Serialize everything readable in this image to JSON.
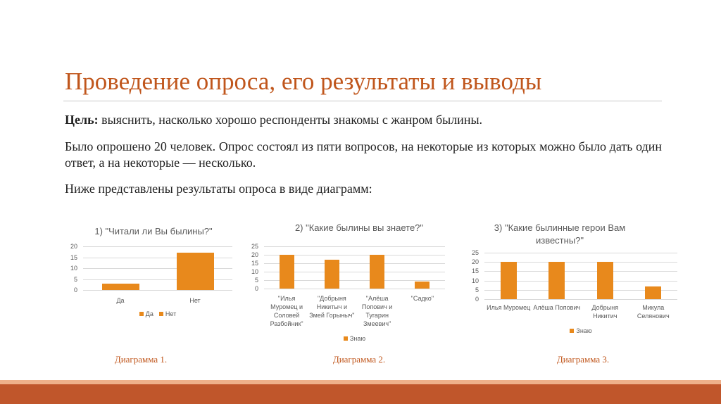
{
  "title": "Проведение опроса, его результаты и выводы",
  "goal_label": "Цель:",
  "goal_text": "выяснить, насколько хорошо респонденты знакомы с жанром былины.",
  "paragraphs": [
    "Было опрошено 20 человек. Опрос состоял из пяти вопросов, на некоторые из которых можно было дать один ответ, а на некоторые — несколько.",
    "Ниже представлены результаты опроса в виде диаграмм:"
  ],
  "chart_data": [
    {
      "type": "bar",
      "title": "1) \"Читали ли Вы былины?\"",
      "categories": [
        "Да",
        "Нет"
      ],
      "values": [
        3,
        17
      ],
      "color": "#e8891c",
      "ylim": [
        0,
        20
      ],
      "yticks": [
        0,
        5,
        10,
        15,
        20
      ],
      "grid": true,
      "legend": "bottom",
      "caption": "Диаграмма 1."
    },
    {
      "type": "bar",
      "title": "2) \"Какие былины вы знаете?\"",
      "categories": [
        "\"Илья Муромец и Соловей Разбойник\"",
        "\"Добрыня Никитыч и Змей Горыныч\"",
        "\"Алёша Попович и Тугарин Змеевич\"",
        "\"Садко\""
      ],
      "series": [
        {
          "name": "Знаю",
          "color": "#e8891c",
          "values": [
            20,
            17,
            20,
            4
          ]
        }
      ],
      "ylim": [
        0,
        25
      ],
      "yticks": [
        0,
        5,
        10,
        15,
        20,
        25
      ],
      "grid": true,
      "legend": "bottom",
      "caption": "Диаграмма 2."
    },
    {
      "type": "bar",
      "title": "3) \"Какие былинные герои Вам известны?\"",
      "categories": [
        "Илья Муромец",
        "Алёша Попович",
        "Добрыня Никитич",
        "Микула Селянович"
      ],
      "series": [
        {
          "name": "Знаю",
          "color": "#e8891c",
          "values": [
            20,
            20,
            20,
            7
          ]
        }
      ],
      "ylim": [
        0,
        25
      ],
      "yticks": [
        0,
        5,
        10,
        15,
        20,
        25
      ],
      "grid": true,
      "legend": "bottom",
      "caption": "Диаграмма 3."
    }
  ]
}
